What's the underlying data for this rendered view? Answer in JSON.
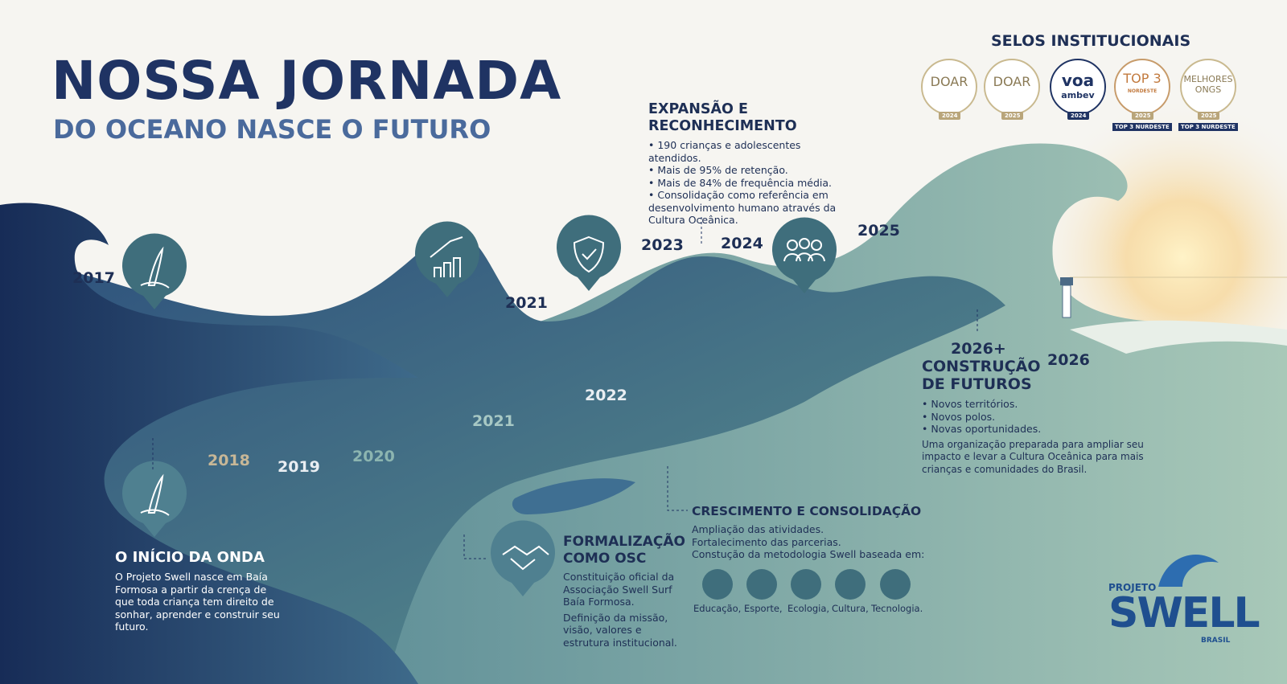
{
  "header": {
    "title": "NOSSA JORNADA",
    "subtitle": "DO OCEANO NASCE O FUTURO"
  },
  "seals": {
    "title": "SELOS INSTITUCIONAIS",
    "items": [
      {
        "name": "DOAR",
        "year": "2024"
      },
      {
        "name": "DOAR",
        "year": "2025"
      },
      {
        "name": "voa",
        "sub": "ambev",
        "year": "2024"
      },
      {
        "name": "TOP 3",
        "sub": "NORDESTE",
        "year": "2025",
        "ribbon": "TOP 3 NURDESTE"
      },
      {
        "name": "MELHORES ONGS",
        "year": "2025",
        "ribbon": "TOP 3 NURDESTE"
      }
    ]
  },
  "years": [
    "2017",
    "2018",
    "2019",
    "2020",
    "2021",
    "2021",
    "2022",
    "2023",
    "2024",
    "2025",
    "2026"
  ],
  "milestones": {
    "inicio": {
      "title": "O INÍCIO DA ONDA",
      "text": "O Projeto Swell nasce em Baía Formosa a partir da crença de que toda criança tem direito de sonhar, aprender e construir seu futuro."
    },
    "formalizacao": {
      "title": "FORMALIZAÇÃO COMO OSC",
      "items": [
        "Constituição oficial da Associação Swell Surf Baía Formosa.",
        "Definição da missão, visão, valores e estrutura institucional."
      ]
    },
    "crescimento": {
      "title": "CRESCIMENTO E CONSOLIDAÇÃO",
      "lines": [
        "Ampliação das atividades.",
        "Fortalecimento das parcerias.",
        "Constução da metodologia Swell baseada em:"
      ],
      "pillars": [
        "Educação,",
        "Esporte,",
        "Ecologia,",
        "Cultura,",
        "Tecnologia."
      ]
    },
    "expansao": {
      "title": "EXPANSÃO E RECONHECIMENTO",
      "items": [
        "190 crianças e adolescentes atendidos.",
        "Mais de 95% de retenção.",
        "Mais de 84% de frequência média.",
        "Consolidação como referência em desenvolvimento humano através da Cultura Oceânica."
      ]
    },
    "futuro": {
      "year": "2026+",
      "title": "CONSTRUÇÃO DE FUTUROS",
      "items": [
        "Novos territórios.",
        "Novos polos.",
        "Novas oportunidades."
      ],
      "text": "Uma organização preparada para ampliar seu impacto e levar a Cultura Oceânica para mais crianças e comunidades do Brasil."
    }
  },
  "logo": {
    "top": "PROJETO",
    "main": "SWELL",
    "bottom": "BRASIL"
  }
}
